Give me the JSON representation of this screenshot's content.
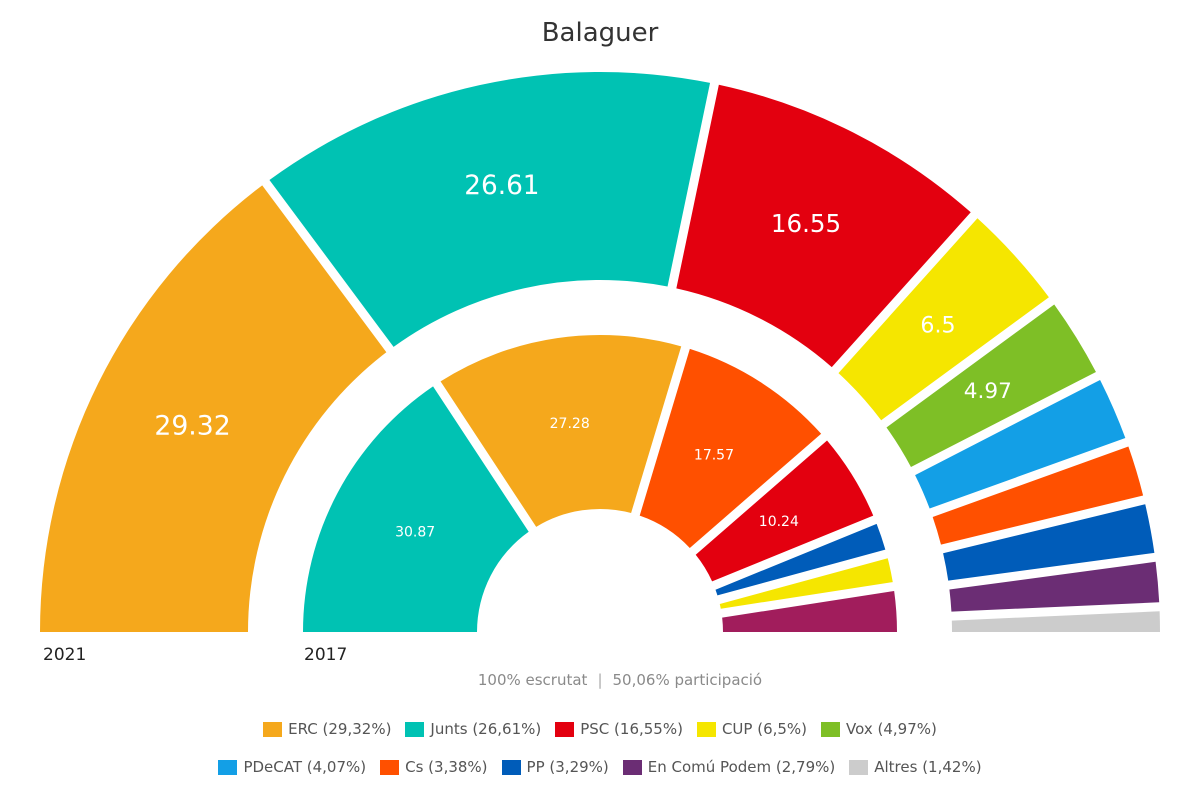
{
  "chart_data": {
    "type": "pie",
    "subtype": "half-donut",
    "title": "Balaguer",
    "rings": [
      {
        "name": "2021",
        "series": [
          {
            "party": "ERC",
            "value": 29.32,
            "label": "29.32"
          },
          {
            "party": "Junts",
            "value": 26.61,
            "label": "26.61"
          },
          {
            "party": "PSC",
            "value": 16.55,
            "label": "16.55"
          },
          {
            "party": "CUP",
            "value": 6.5,
            "label": "6.5"
          },
          {
            "party": "Vox",
            "value": 4.97,
            "label": "4.97"
          },
          {
            "party": "PDeCAT",
            "value": 4.07,
            "label": ""
          },
          {
            "party": "Cs",
            "value": 3.38,
            "label": ""
          },
          {
            "party": "PP",
            "value": 3.29,
            "label": ""
          },
          {
            "party": "En Comú Podem",
            "value": 2.79,
            "label": ""
          },
          {
            "party": "Altres",
            "value": 1.42,
            "label": ""
          }
        ]
      },
      {
        "name": "2017",
        "series": [
          {
            "party": "Junts",
            "value": 30.87,
            "label": "30.87"
          },
          {
            "party": "ERC",
            "value": 27.28,
            "label": "27.28"
          },
          {
            "party": "Cs",
            "value": 17.57,
            "label": "17.57"
          },
          {
            "party": "PSC",
            "value": 10.24,
            "label": "10.24"
          },
          {
            "party": "PP",
            "value": 3.8,
            "label": ""
          },
          {
            "party": "CUP",
            "value": 3.5,
            "label": ""
          },
          {
            "party": "En Comú Podem",
            "value": 4.8,
            "label": ""
          }
        ]
      }
    ]
  },
  "colors": {
    "ERC": "#F5A81C",
    "Junts": "#00C2B3",
    "PSC": "#E3000F",
    "CUP": "#F5E600",
    "Vox": "#7EBF26",
    "PDeCAT": "#139FE6",
    "Cs": "#FF5000",
    "PP": "#005CB9",
    "En Comú Podem": "#6B2D74",
    "Altres": "#CCCCCC",
    "En Comú Podem 2017": "#A11D5C"
  },
  "footer": {
    "counted": "100% escrutat",
    "separator": "|",
    "turnout": "50,06% participació"
  },
  "legend": {
    "row1": [
      {
        "party": "ERC",
        "text": "ERC (29,32%)"
      },
      {
        "party": "Junts",
        "text": "Junts (26,61%)"
      },
      {
        "party": "PSC",
        "text": "PSC (16,55%)"
      },
      {
        "party": "CUP",
        "text": "CUP (6,5%)"
      },
      {
        "party": "Vox",
        "text": "Vox (4,97%)"
      }
    ],
    "row2": [
      {
        "party": "PDeCAT",
        "text": "PDeCAT (4,07%)"
      },
      {
        "party": "Cs",
        "text": "Cs (3,38%)"
      },
      {
        "party": "PP",
        "text": "PP (3,29%)"
      },
      {
        "party": "En Comú Podem",
        "text": "En Comú Podem (2,79%)"
      },
      {
        "party": "Altres",
        "text": "Altres (1,42%)"
      }
    ]
  }
}
